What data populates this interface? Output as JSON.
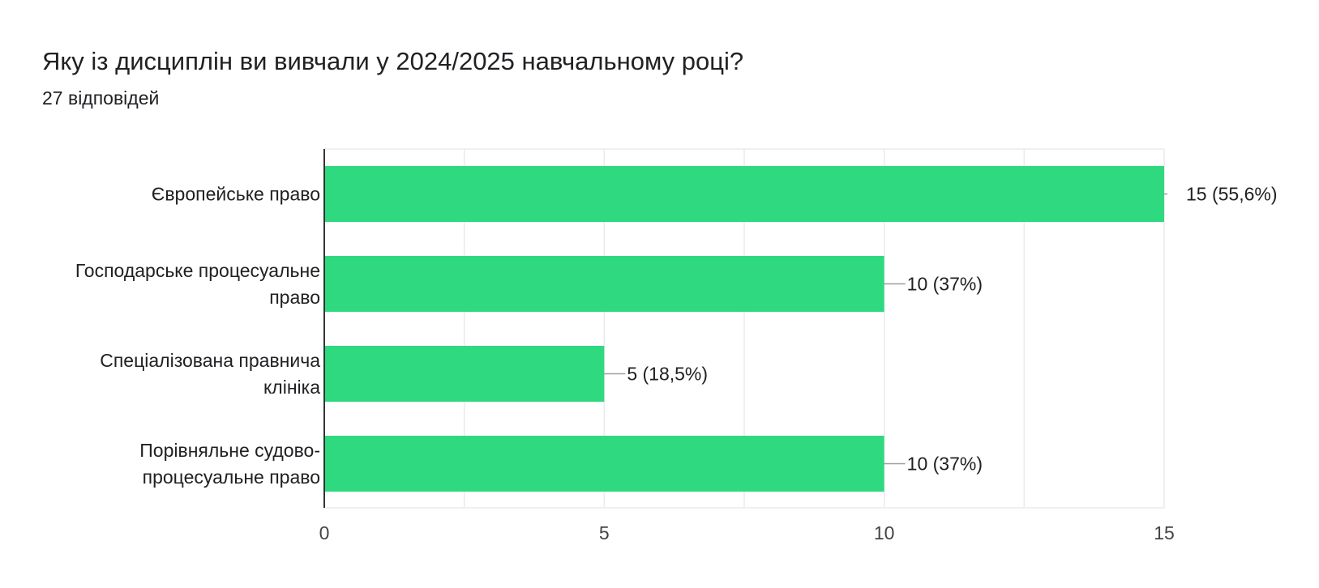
{
  "header": {
    "title": "Яку із дисциплін ви вивчали у 2024/2025 навчальному році?",
    "subtitle": "27 відповідей"
  },
  "colors": {
    "bar": "#2fd97f",
    "text": "#202124",
    "axis": "#333333",
    "grid": "#ebebeb",
    "leader": "#9e9e9e"
  },
  "chart_data": {
    "type": "bar",
    "orientation": "horizontal",
    "categories": [
      [
        "Європейське право"
      ],
      [
        "Господарське процесуальне",
        "право"
      ],
      [
        "Спеціалізована правнича",
        "клініка"
      ],
      [
        "Порівняльне судово-",
        "процесуальне право"
      ]
    ],
    "values": [
      15,
      10,
      5,
      10
    ],
    "data_labels": [
      "15 (55,6%)",
      "10 (37%)",
      "5 (18,5%)",
      "10 (37%)"
    ],
    "xlim": [
      0,
      15
    ],
    "xticks": [
      0,
      5,
      10,
      15
    ],
    "grid": true
  }
}
